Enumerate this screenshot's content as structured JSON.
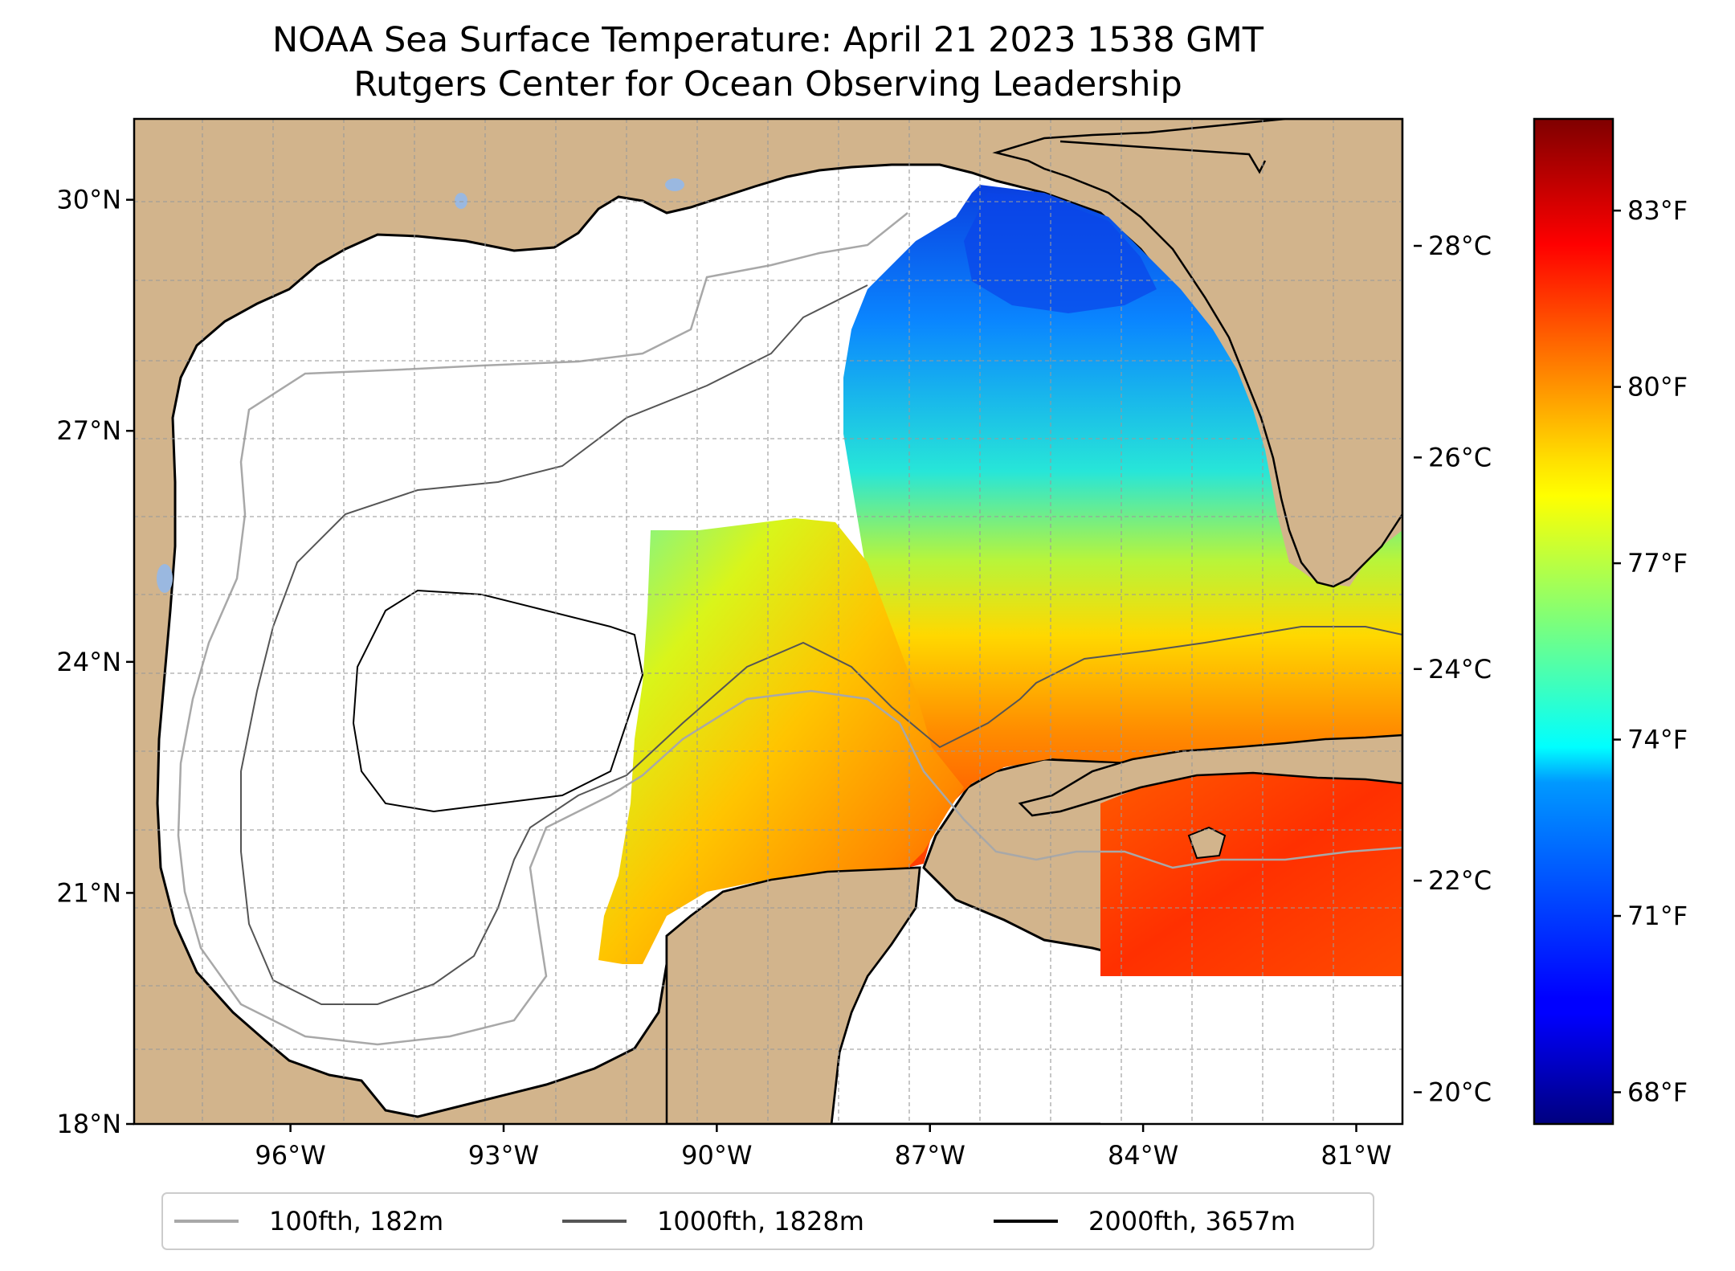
{
  "title": {
    "line1": "NOAA Sea Surface Temperature: April 21 2023 1538 GMT",
    "line2": "Rutgers Center for Ocean Observing Leadership"
  },
  "map": {
    "extent": {
      "lon_min": -98.2,
      "lon_max": -80.35,
      "lat_min": 18.0,
      "lat_max": 31.05
    },
    "lat_ticks": [
      {
        "value": 30,
        "label": "30°N"
      },
      {
        "value": 27,
        "label": "27°N"
      },
      {
        "value": 24,
        "label": "24°N"
      },
      {
        "value": 21,
        "label": "21°N"
      },
      {
        "value": 18,
        "label": "18°N"
      }
    ],
    "lon_ticks": [
      {
        "value": -96,
        "label": "96°W"
      },
      {
        "value": -93,
        "label": "93°W"
      },
      {
        "value": -90,
        "label": "90°W"
      },
      {
        "value": -87,
        "label": "87°W"
      },
      {
        "value": -84,
        "label": "84°W"
      },
      {
        "value": -81,
        "label": "81°W"
      }
    ],
    "gridlines": true,
    "colors": {
      "land": "#d2b48c",
      "water_no_data": "#ffffff",
      "lakes": "#9ab8e0",
      "coastline": "#000000",
      "gridline": "#9a9a9a"
    }
  },
  "colorbar": {
    "colormap": "jet",
    "range_c": [
      19.7,
      29.2
    ],
    "celsius_ticks": [
      {
        "value": 20,
        "label": "20°C"
      },
      {
        "value": 22,
        "label": "22°C"
      },
      {
        "value": 24,
        "label": "24°C"
      },
      {
        "value": 26,
        "label": "26°C"
      },
      {
        "value": 28,
        "label": "28°C"
      }
    ],
    "fahrenheit_ticks": [
      {
        "value": 68,
        "label": "68°F"
      },
      {
        "value": 71,
        "label": "71°F"
      },
      {
        "value": 74,
        "label": "74°F"
      },
      {
        "value": 77,
        "label": "77°F"
      },
      {
        "value": 80,
        "label": "80°F"
      },
      {
        "value": 83,
        "label": "83°F"
      }
    ]
  },
  "legend": {
    "placement": "bottom-center",
    "items": [
      {
        "label": "100fth, 182m",
        "color": "#a8a8a8"
      },
      {
        "label": "1000fth, 1828m",
        "color": "#555555"
      },
      {
        "label": "2000fth, 3657m",
        "color": "#000000"
      }
    ]
  }
}
